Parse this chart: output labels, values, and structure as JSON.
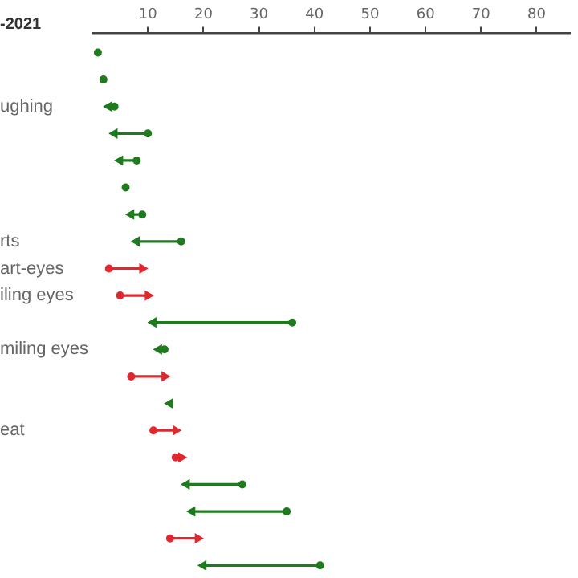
{
  "chart_data": {
    "type": "scatter",
    "title": "-2021",
    "orientation": "horizontal",
    "categories": [
      null,
      null,
      "ughing",
      null,
      null,
      null,
      null,
      "rts",
      "art-eyes",
      "iling eyes",
      null,
      "miling eyes",
      null,
      null,
      "eat",
      null,
      null,
      null,
      null,
      null
    ],
    "series": [
      {
        "marker": "circle",
        "colors": [
          "#1e7b1e",
          "#1e7b1e",
          "#1e7b1e",
          "#1e7b1e",
          "#1e7b1e",
          "#1e7b1e",
          "#1e7b1e",
          "#1e7b1e",
          "#e0282e",
          "#e0282e",
          "#1e7b1e",
          "#1e7b1e",
          "#e0282e",
          "#1e7b1e",
          "#e0282e",
          "#e0282e",
          "#1e7b1e",
          "#1e7b1e",
          "#e0282e",
          "#1e7b1e"
        ],
        "values": [
          1,
          2,
          4,
          10,
          8,
          6,
          9,
          16,
          3,
          5,
          36,
          13,
          7,
          null,
          11,
          15,
          27,
          35,
          14,
          41
        ]
      },
      {
        "marker": "triangle",
        "colors": [
          "#1e7b1e",
          "#1e7b1e",
          "#1e7b1e",
          "#1e7b1e",
          "#1e7b1e",
          "#1e7b1e",
          "#1e7b1e",
          "#1e7b1e",
          "#e0282e",
          "#e0282e",
          "#1e7b1e",
          "#1e7b1e",
          "#e0282e",
          "#1e7b1e",
          "#e0282e",
          "#e0282e",
          "#1e7b1e",
          "#1e7b1e",
          "#e0282e",
          "#1e7b1e"
        ],
        "values": [
          null,
          null,
          3,
          4,
          5,
          null,
          7,
          8,
          9,
          10,
          11,
          12,
          13,
          14,
          15,
          16,
          17,
          18,
          19,
          20
        ]
      }
    ],
    "xlim": [
      0,
      86
    ],
    "xticks": [
      10,
      20,
      30,
      40,
      50,
      60,
      70,
      80
    ]
  }
}
